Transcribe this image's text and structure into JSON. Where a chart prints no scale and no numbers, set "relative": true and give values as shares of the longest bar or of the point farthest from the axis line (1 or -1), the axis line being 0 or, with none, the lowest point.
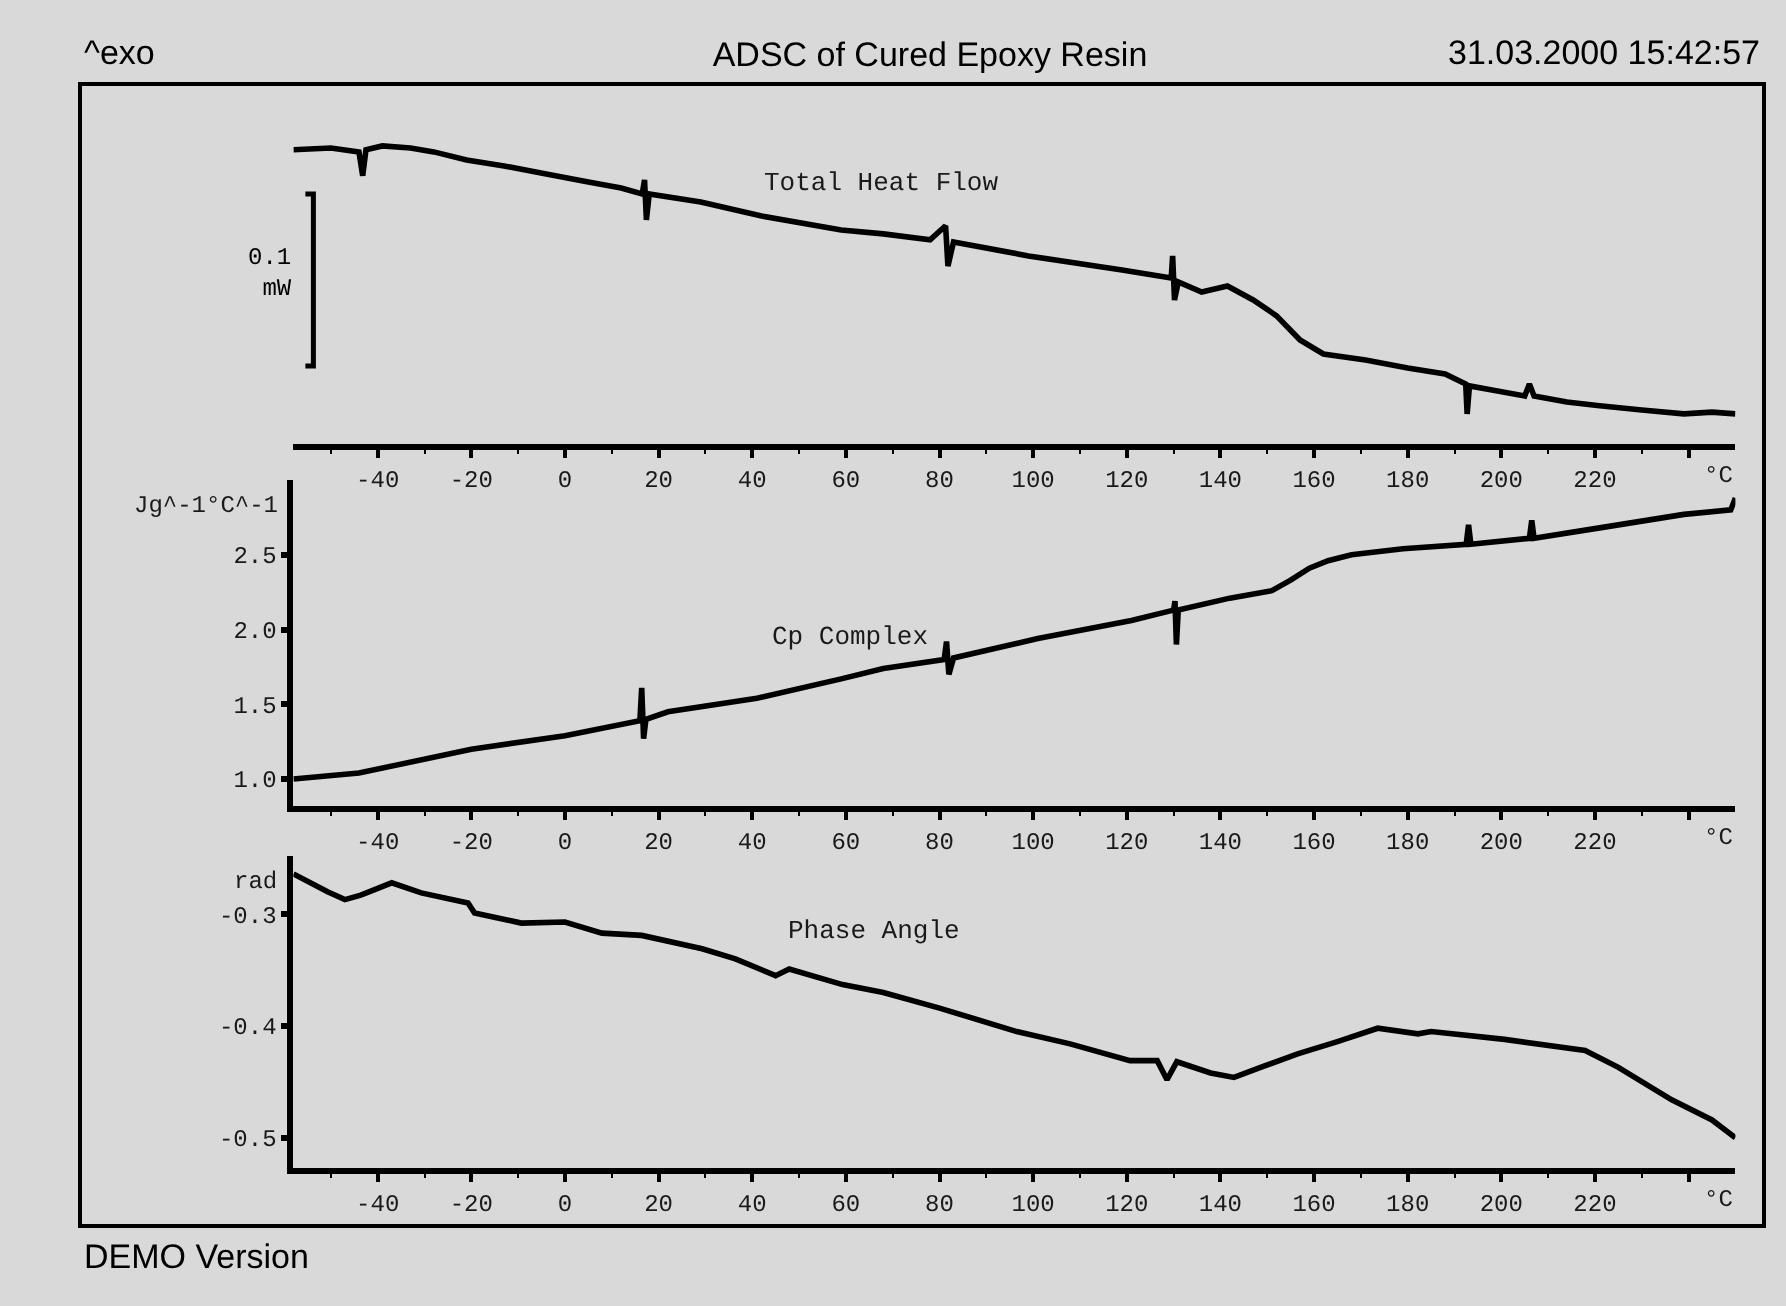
{
  "chart_data": [
    {
      "type": "line",
      "title": "ADSC of Cured Epoxy Resin",
      "annotations": [
        "^exo",
        "31.03.2000 15:42:57",
        "0.1\nmW"
      ],
      "relative": true,
      "xlabel": "°C",
      "xlim": [
        -58,
        250
      ],
      "xticks": [
        {
          "value": -50,
          "label": null
        },
        -40,
        {
          "value": -30,
          "label": null
        },
        -20,
        {
          "value": -10,
          "label": null
        },
        0,
        {
          "value": 10,
          "label": null
        },
        20,
        {
          "value": 30,
          "label": null
        },
        40,
        {
          "value": 50,
          "label": null
        },
        60,
        {
          "value": 70,
          "label": null
        },
        80,
        {
          "value": 90,
          "label": null
        },
        100,
        {
          "value": 110,
          "label": null
        },
        120,
        {
          "value": 130,
          "label": null
        },
        140,
        {
          "value": 150,
          "label": null
        },
        160,
        {
          "value": 170,
          "label": null
        },
        180,
        {
          "value": 190,
          "label": null
        },
        200,
        {
          "value": 210,
          "label": null
        },
        220,
        {
          "value": 230,
          "label": null
        },
        {
          "value": 240,
          "label": null
        }
      ],
      "series": [
        {
          "name": "Total Heat Flow",
          "color": "#000000",
          "x": [
            -58,
            -50,
            -44,
            -43.2,
            -42.5,
            -39,
            -33,
            -28,
            -21,
            -13,
            -4,
            5,
            12,
            16.5,
            17,
            17.4,
            18,
            29,
            42,
            59,
            68,
            78,
            81.3,
            81.8,
            83,
            99,
            119,
            129.5,
            129.8,
            130.2,
            131,
            136,
            141.5,
            147,
            152,
            157,
            162,
            171,
            180,
            188,
            192.4,
            192.7,
            193.2,
            198,
            205,
            206,
            207,
            214,
            221,
            230,
            239,
            245,
            250
          ],
          "values": [
            0.987,
            0.993,
            0.98,
            0.9,
            0.987,
            1.0,
            0.993,
            0.98,
            0.953,
            0.933,
            0.906,
            0.879,
            0.859,
            0.839,
            0.886,
            0.752,
            0.839,
            0.812,
            0.765,
            0.718,
            0.705,
            0.685,
            0.732,
            0.597,
            0.678,
            0.631,
            0.584,
            0.557,
            0.631,
            0.483,
            0.544,
            0.51,
            0.53,
            0.483,
            0.43,
            0.349,
            0.302,
            0.282,
            0.255,
            0.235,
            0.201,
            0.101,
            0.195,
            0.181,
            0.161,
            0.201,
            0.161,
            0.141,
            0.128,
            0.114,
            0.101,
            0.107,
            0.101
          ]
        }
      ]
    },
    {
      "type": "line",
      "ylabel": "Jg^-1°C^-1",
      "xlabel": "°C",
      "xlim": [
        -58,
        250
      ],
      "ylim": [
        0.82,
        3
      ],
      "yticks": [
        {
          "value": 1,
          "label": "1.0"
        },
        1.5,
        {
          "value": 2,
          "label": "2.0"
        },
        2.5
      ],
      "xticks": [
        {
          "value": -50,
          "label": null
        },
        -40,
        {
          "value": -30,
          "label": null
        },
        -20,
        {
          "value": -10,
          "label": null
        },
        0,
        {
          "value": 10,
          "label": null
        },
        20,
        {
          "value": 30,
          "label": null
        },
        40,
        {
          "value": 50,
          "label": null
        },
        60,
        {
          "value": 70,
          "label": null
        },
        80,
        {
          "value": 90,
          "label": null
        },
        100,
        {
          "value": 110,
          "label": null
        },
        120,
        {
          "value": 130,
          "label": null
        },
        140,
        {
          "value": 150,
          "label": null
        },
        160,
        {
          "value": 170,
          "label": null
        },
        180,
        {
          "value": 190,
          "label": null
        },
        200,
        {
          "value": 210,
          "label": null
        },
        220,
        {
          "value": 230,
          "label": null
        },
        {
          "value": 240,
          "label": null
        }
      ],
      "series": [
        {
          "name": "Cp Complex",
          "color": "#000000",
          "x": [
            -58,
            -44,
            -20,
            0,
            16,
            16.4,
            16.8,
            17.3,
            22,
            41,
            59,
            68,
            81,
            81.5,
            82,
            83,
            101,
            121,
            130,
            130.3,
            130.6,
            131,
            142,
            151,
            155,
            159,
            163,
            168,
            179,
            192.5,
            193,
            193.5,
            206,
            206.5,
            207,
            221,
            239,
            249,
            250
          ],
          "values": [
            1.0,
            1.04,
            1.2,
            1.29,
            1.39,
            1.61,
            1.27,
            1.4,
            1.45,
            1.54,
            1.67,
            1.74,
            1.8,
            1.92,
            1.7,
            1.81,
            1.94,
            2.06,
            2.13,
            2.19,
            1.9,
            2.13,
            2.21,
            2.26,
            2.33,
            2.41,
            2.46,
            2.5,
            2.54,
            2.57,
            2.7,
            2.57,
            2.61,
            2.73,
            2.61,
            2.68,
            2.77,
            2.8,
            2.88
          ]
        }
      ]
    },
    {
      "type": "line",
      "ylabel": "rad",
      "xlabel": "°C",
      "annotations": [
        "DEMO Version"
      ],
      "xlim": [
        -58,
        250
      ],
      "ylim": [
        -0.527,
        -0.248
      ],
      "yticks": [
        -0.5,
        -0.4,
        -0.3
      ],
      "xticks": [
        {
          "value": -50,
          "label": null
        },
        -40,
        {
          "value": -30,
          "label": null
        },
        -20,
        {
          "value": -10,
          "label": null
        },
        0,
        {
          "value": 10,
          "label": null
        },
        20,
        {
          "value": 30,
          "label": null
        },
        40,
        {
          "value": 50,
          "label": null
        },
        60,
        {
          "value": 70,
          "label": null
        },
        80,
        {
          "value": 90,
          "label": null
        },
        100,
        {
          "value": 110,
          "label": null
        },
        120,
        {
          "value": 130,
          "label": null
        },
        140,
        {
          "value": 150,
          "label": null
        },
        160,
        {
          "value": 170,
          "label": null
        },
        180,
        {
          "value": 190,
          "label": null
        },
        200,
        {
          "value": 210,
          "label": null
        },
        220,
        {
          "value": 230,
          "label": null
        },
        {
          "value": 240,
          "label": null
        }
      ],
      "series": [
        {
          "name": "Phase Angle",
          "color": "#000000",
          "x": [
            -58,
            -50.7,
            -47,
            -43.6,
            -37,
            -30.7,
            -20.7,
            -19.3,
            -9.3,
            0,
            7.9,
            16.4,
            29.3,
            36.4,
            45,
            47.9,
            59.3,
            68,
            80,
            96.5,
            107.9,
            120.7,
            126.5,
            128.6,
            130.7,
            137.9,
            142.9,
            149.3,
            156.5,
            165,
            173.6,
            182.2,
            185,
            200.7,
            217.9,
            225,
            236.4,
            245,
            250
          ],
          "values": [
            -0.264,
            -0.28,
            -0.287,
            -0.283,
            -0.272,
            -0.281,
            -0.29,
            -0.299,
            -0.308,
            -0.307,
            -0.317,
            -0.319,
            -0.331,
            -0.34,
            -0.355,
            -0.349,
            -0.363,
            -0.37,
            -0.384,
            -0.405,
            -0.416,
            -0.431,
            -0.431,
            -0.448,
            -0.432,
            -0.442,
            -0.446,
            -0.436,
            -0.425,
            -0.414,
            -0.402,
            -0.407,
            -0.405,
            -0.412,
            -0.422,
            -0.437,
            -0.466,
            -0.484,
            -0.5
          ]
        }
      ]
    }
  ]
}
